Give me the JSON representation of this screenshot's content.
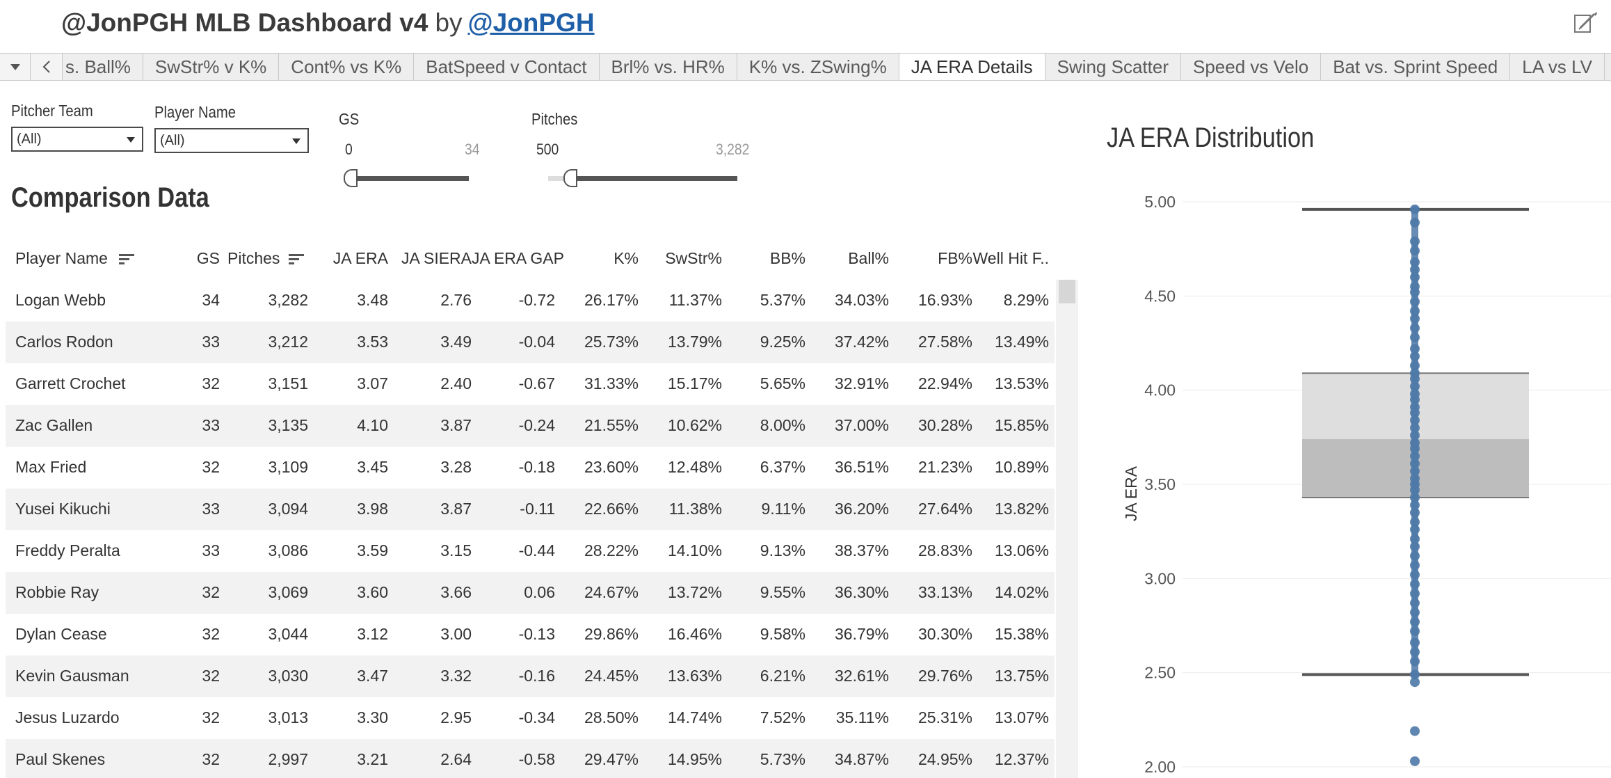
{
  "header": {
    "title": "@JonPGH MLB Dashboard v4",
    "by": "by",
    "author": "@JonPGH"
  },
  "tabs": [
    {
      "label": "s. Ball%",
      "active": false
    },
    {
      "label": "SwStr% v K%",
      "active": false
    },
    {
      "label": "Cont% vs K%",
      "active": false
    },
    {
      "label": "BatSpeed v Contact",
      "active": false
    },
    {
      "label": "Brl% vs. HR%",
      "active": false
    },
    {
      "label": "K% vs. ZSwing%",
      "active": false
    },
    {
      "label": "JA ERA Details",
      "active": true
    },
    {
      "label": "Swing Scatter",
      "active": false
    },
    {
      "label": "Speed vs Velo",
      "active": false
    },
    {
      "label": "Bat vs. Sprint Speed",
      "active": false
    },
    {
      "label": "LA vs LV",
      "active": false
    }
  ],
  "filters": {
    "pitcher_team": {
      "label": "Pitcher Team",
      "value": "(All)"
    },
    "player_name": {
      "label": "Player Name",
      "value": "(All)"
    },
    "gs": {
      "label": "GS",
      "min": "0",
      "max": "34"
    },
    "pitches": {
      "label": "Pitches",
      "min": "500",
      "max": "3,282"
    }
  },
  "table": {
    "title": "Comparison Data",
    "columns": [
      "Player Name",
      "GS",
      "Pitches",
      "JA ERA",
      "JA SIERA",
      "JA ERA GAP",
      "K%",
      "SwStr%",
      "BB%",
      "Ball%",
      "FB%",
      "Well Hit F.."
    ],
    "rows": [
      [
        "Logan Webb",
        "34",
        "3,282",
        "3.48",
        "2.76",
        "-0.72",
        "26.17%",
        "11.37%",
        "5.37%",
        "34.03%",
        "16.93%",
        "8.29%"
      ],
      [
        "Carlos Rodon",
        "33",
        "3,212",
        "3.53",
        "3.49",
        "-0.04",
        "25.73%",
        "13.79%",
        "9.25%",
        "37.42%",
        "27.58%",
        "13.49%"
      ],
      [
        "Garrett Crochet",
        "32",
        "3,151",
        "3.07",
        "2.40",
        "-0.67",
        "31.33%",
        "15.17%",
        "5.65%",
        "32.91%",
        "22.94%",
        "13.53%"
      ],
      [
        "Zac Gallen",
        "33",
        "3,135",
        "4.10",
        "3.87",
        "-0.24",
        "21.55%",
        "10.62%",
        "8.00%",
        "37.00%",
        "30.28%",
        "15.85%"
      ],
      [
        "Max Fried",
        "32",
        "3,109",
        "3.45",
        "3.28",
        "-0.18",
        "23.60%",
        "12.48%",
        "6.37%",
        "36.51%",
        "21.23%",
        "10.89%"
      ],
      [
        "Yusei Kikuchi",
        "33",
        "3,094",
        "3.98",
        "3.87",
        "-0.11",
        "22.66%",
        "11.38%",
        "9.11%",
        "36.20%",
        "27.64%",
        "13.82%"
      ],
      [
        "Freddy Peralta",
        "33",
        "3,086",
        "3.59",
        "3.15",
        "-0.44",
        "28.22%",
        "14.10%",
        "9.13%",
        "38.37%",
        "28.83%",
        "13.06%"
      ],
      [
        "Robbie Ray",
        "32",
        "3,069",
        "3.60",
        "3.66",
        "0.06",
        "24.67%",
        "13.72%",
        "9.55%",
        "36.30%",
        "33.13%",
        "14.02%"
      ],
      [
        "Dylan Cease",
        "32",
        "3,044",
        "3.12",
        "3.00",
        "-0.13",
        "29.86%",
        "16.46%",
        "9.58%",
        "36.79%",
        "30.30%",
        "15.38%"
      ],
      [
        "Kevin Gausman",
        "32",
        "3,030",
        "3.47",
        "3.32",
        "-0.16",
        "24.45%",
        "13.63%",
        "6.21%",
        "32.61%",
        "29.76%",
        "13.75%"
      ],
      [
        "Jesus Luzardo",
        "32",
        "3,013",
        "3.30",
        "2.95",
        "-0.34",
        "28.50%",
        "14.74%",
        "7.52%",
        "35.11%",
        "25.31%",
        "13.07%"
      ],
      [
        "Paul Skenes",
        "32",
        "2,997",
        "3.21",
        "2.64",
        "-0.58",
        "29.47%",
        "14.95%",
        "5.73%",
        "34.87%",
        "24.95%",
        "12.37%"
      ]
    ]
  },
  "chart_data": {
    "type": "box",
    "title": "JA ERA Distribution",
    "ylabel": "JA ERA",
    "ylim": [
      2.0,
      5.0
    ],
    "yticks": [
      "5.00",
      "4.50",
      "4.00",
      "3.50",
      "3.00",
      "2.50",
      "2.00"
    ],
    "box": {
      "whisker_high": 4.96,
      "q3": 4.09,
      "median": 3.74,
      "q1": 3.43,
      "whisker_low": 2.49
    },
    "points": [
      4.96,
      4.89,
      4.79,
      4.74,
      4.68,
      4.64,
      4.6,
      4.55,
      4.52,
      4.47,
      4.42,
      4.38,
      4.33,
      4.28,
      4.22,
      4.18,
      4.13,
      4.09,
      4.06,
      4.02,
      3.98,
      3.95,
      3.91,
      3.88,
      3.84,
      3.8,
      3.76,
      3.72,
      3.69,
      3.65,
      3.61,
      3.57,
      3.53,
      3.5,
      3.47,
      3.43,
      3.39,
      3.35,
      3.3,
      3.26,
      3.21,
      3.17,
      3.12,
      3.07,
      3.02,
      2.97,
      2.92,
      2.87,
      2.82,
      2.77,
      2.72,
      2.66,
      2.61,
      2.56,
      2.49,
      2.45,
      2.19,
      2.03
    ],
    "colors": {
      "point": "#4e79a7",
      "box_upper": "#dedede",
      "box_lower": "#bdbdbd",
      "whisker": "#555555"
    }
  }
}
